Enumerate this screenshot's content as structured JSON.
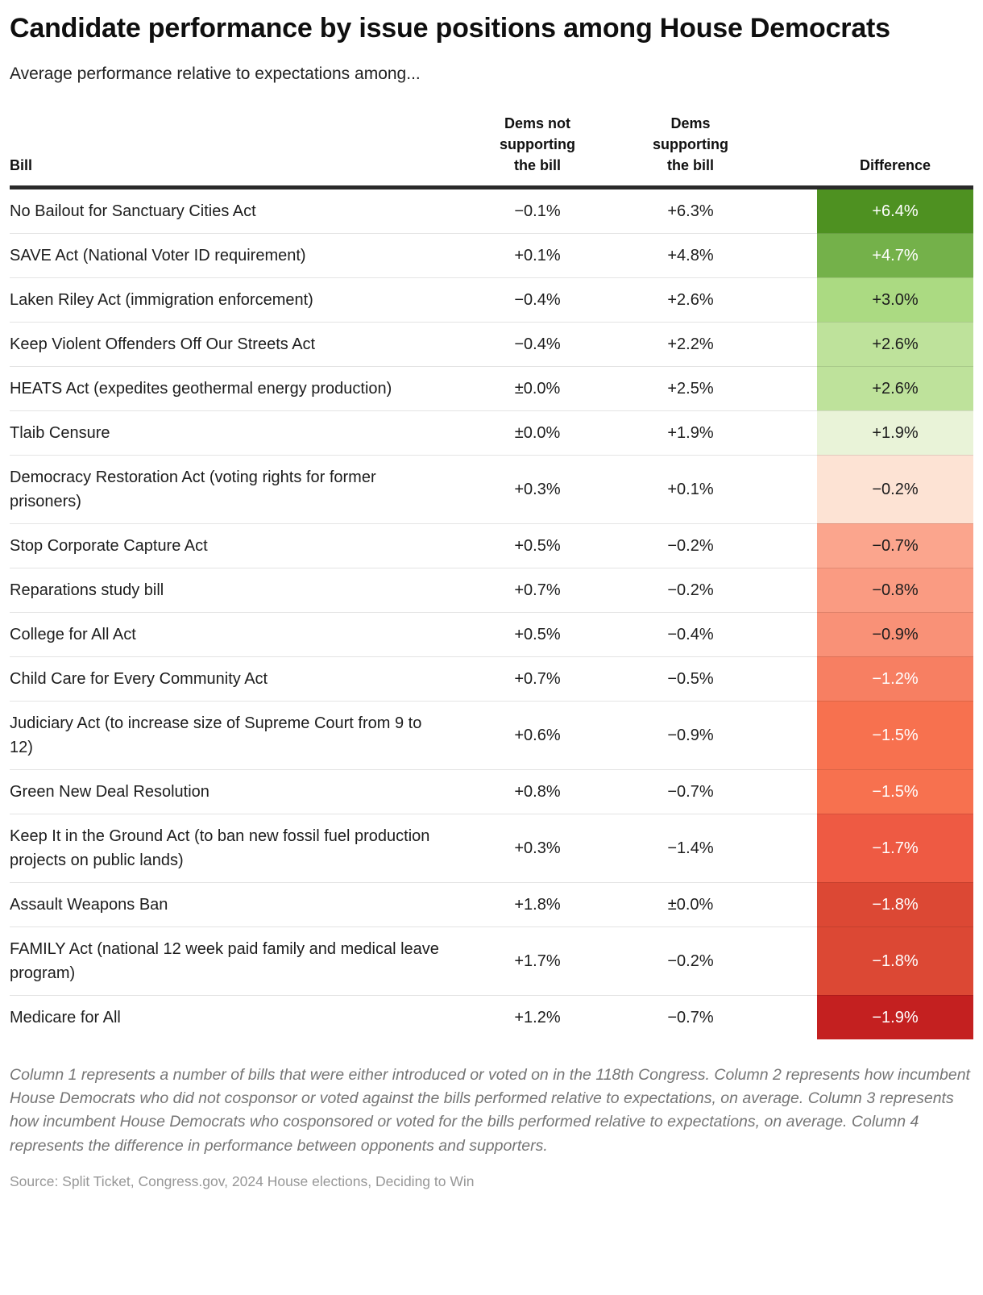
{
  "header": {
    "title": "Candidate performance by issue positions among House Democrats",
    "subtitle": "Average performance relative to expectations among..."
  },
  "table": {
    "columns": {
      "bill": "Bill",
      "not_supporting": "Dems not supporting the bill",
      "supporting": "Dems supporting the bill",
      "difference": "Difference"
    },
    "rows": [
      {
        "bill": "No Bailout for Sanctuary Cities Act",
        "not_supporting": "−0.1%",
        "supporting": "+6.3%",
        "difference": "+6.4%",
        "diff_bg": "#4e9121",
        "diff_fg": "#ffffff"
      },
      {
        "bill": "SAVE Act (National Voter ID requirement)",
        "not_supporting": "+0.1%",
        "supporting": "+4.8%",
        "difference": "+4.7%",
        "diff_bg": "#74b14a",
        "diff_fg": "#ffffff"
      },
      {
        "bill": "Laken Riley Act (immigration enforcement)",
        "not_supporting": "−0.4%",
        "supporting": "+2.6%",
        "difference": "+3.0%",
        "diff_bg": "#abda82",
        "diff_fg": "#1d1d1d"
      },
      {
        "bill": "Keep Violent Offenders Off Our Streets Act",
        "not_supporting": "−0.4%",
        "supporting": "+2.2%",
        "difference": "+2.6%",
        "diff_bg": "#bee29b",
        "diff_fg": "#1d1d1d"
      },
      {
        "bill": "HEATS Act (expedites geothermal energy production)",
        "not_supporting": "±0.0%",
        "supporting": "+2.5%",
        "difference": "+2.6%",
        "diff_bg": "#bee29b",
        "diff_fg": "#1d1d1d"
      },
      {
        "bill": "Tlaib Censure",
        "not_supporting": "±0.0%",
        "supporting": "+1.9%",
        "difference": "+1.9%",
        "diff_bg": "#e9f3d8",
        "diff_fg": "#1d1d1d"
      },
      {
        "bill": "Democracy Restoration Act (voting rights for former prisoners)",
        "not_supporting": "+0.3%",
        "supporting": "+0.1%",
        "difference": "−0.2%",
        "diff_bg": "#fde3d4",
        "diff_fg": "#1d1d1d"
      },
      {
        "bill": "Stop Corporate Capture Act",
        "not_supporting": "+0.5%",
        "supporting": "−0.2%",
        "difference": "−0.7%",
        "diff_bg": "#fba58d",
        "diff_fg": "#1d1d1d"
      },
      {
        "bill": "Reparations study bill",
        "not_supporting": "+0.7%",
        "supporting": "−0.2%",
        "difference": "−0.8%",
        "diff_bg": "#fa9b82",
        "diff_fg": "#1d1d1d"
      },
      {
        "bill": "College for All Act",
        "not_supporting": "+0.5%",
        "supporting": "−0.4%",
        "difference": "−0.9%",
        "diff_bg": "#f99177",
        "diff_fg": "#1d1d1d"
      },
      {
        "bill": "Child Care for Every Community Act",
        "not_supporting": "+0.7%",
        "supporting": "−0.5%",
        "difference": "−1.2%",
        "diff_bg": "#f77f62",
        "diff_fg": "#ffffff"
      },
      {
        "bill": "Judiciary Act (to increase size of Supreme Court from 9 to 12)",
        "not_supporting": "+0.6%",
        "supporting": "−0.9%",
        "difference": "−1.5%",
        "diff_bg": "#f7714f",
        "diff_fg": "#ffffff"
      },
      {
        "bill": "Green New Deal Resolution",
        "not_supporting": "+0.8%",
        "supporting": "−0.7%",
        "difference": "−1.5%",
        "diff_bg": "#f7714f",
        "diff_fg": "#ffffff"
      },
      {
        "bill": "Keep It in the Ground Act (to ban new fossil fuel production projects on public lands)",
        "not_supporting": "+0.3%",
        "supporting": "−1.4%",
        "difference": "−1.7%",
        "diff_bg": "#ee5a43",
        "diff_fg": "#ffffff"
      },
      {
        "bill": "Assault Weapons Ban",
        "not_supporting": "+1.8%",
        "supporting": "±0.0%",
        "difference": "−1.8%",
        "diff_bg": "#dc4834",
        "diff_fg": "#ffffff"
      },
      {
        "bill": "FAMILY Act (national 12 week paid family and medical leave program)",
        "not_supporting": "+1.7%",
        "supporting": "−0.2%",
        "difference": "−1.8%",
        "diff_bg": "#dc4834",
        "diff_fg": "#ffffff"
      },
      {
        "bill": "Medicare for All",
        "not_supporting": "+1.2%",
        "supporting": "−0.7%",
        "difference": "−1.9%",
        "diff_bg": "#c42020",
        "diff_fg": "#ffffff"
      }
    ]
  },
  "chart_data": {
    "type": "table",
    "title": "Candidate performance by issue positions among House Democrats",
    "subtitle": "Average performance relative to expectations among...",
    "columns": [
      "Bill",
      "Dems not supporting the bill (%)",
      "Dems supporting the bill (%)",
      "Difference (%)"
    ],
    "rows": [
      [
        "No Bailout for Sanctuary Cities Act",
        -0.1,
        6.3,
        6.4
      ],
      [
        "SAVE Act (National Voter ID requirement)",
        0.1,
        4.8,
        4.7
      ],
      [
        "Laken Riley Act (immigration enforcement)",
        -0.4,
        2.6,
        3.0
      ],
      [
        "Keep Violent Offenders Off Our Streets Act",
        -0.4,
        2.2,
        2.6
      ],
      [
        "HEATS Act (expedites geothermal energy production)",
        0.0,
        2.5,
        2.6
      ],
      [
        "Tlaib Censure",
        0.0,
        1.9,
        1.9
      ],
      [
        "Democracy Restoration Act (voting rights for former prisoners)",
        0.3,
        0.1,
        -0.2
      ],
      [
        "Stop Corporate Capture Act",
        0.5,
        -0.2,
        -0.7
      ],
      [
        "Reparations study bill",
        0.7,
        -0.2,
        -0.8
      ],
      [
        "College for All Act",
        0.5,
        -0.4,
        -0.9
      ],
      [
        "Child Care for Every Community Act",
        0.7,
        -0.5,
        -1.2
      ],
      [
        "Judiciary Act (to increase size of Supreme Court from 9 to 12)",
        0.6,
        -0.9,
        -1.5
      ],
      [
        "Green New Deal Resolution",
        0.8,
        -0.7,
        -1.5
      ],
      [
        "Keep It in the Ground Act (to ban new fossil fuel production projects on public lands)",
        0.3,
        -1.4,
        -1.7
      ],
      [
        "Assault Weapons Ban",
        1.8,
        0.0,
        -1.8
      ],
      [
        "FAMILY Act (national 12 week paid family and medical leave program)",
        1.7,
        -0.2,
        -1.8
      ],
      [
        "Medicare for All",
        1.2,
        -0.7,
        -1.9
      ]
    ],
    "color_encoding": "Difference column shaded green (positive) to red (negative)",
    "palette": [
      "#4e9121",
      "#74b14a",
      "#abda82",
      "#bee29b",
      "#e9f3d8",
      "#fde3d4",
      "#fba58d",
      "#fa9b82",
      "#f99177",
      "#f77f62",
      "#f7714f",
      "#ee5a43",
      "#dc4834",
      "#c42020"
    ]
  },
  "footer": {
    "note": "Column 1 represents a number of bills that were either introduced or voted on in the 118th Congress. Column 2 represents how incumbent House Democrats who did not cosponsor or voted against the bills performed relative to expectations, on average. Column 3 represents how incumbent House Democrats who cosponsored or voted for the bills performed relative to expectations, on average. Column 4 represents the difference in performance between opponents and supporters.",
    "source": "Source: Split Ticket, Congress.gov, 2024 House elections, Deciding to Win"
  },
  "colors": {
    "header_rule": "#2a2a2a",
    "row_divider": "#e4e4e4",
    "positive_max": "#4e9121",
    "negative_max": "#c42020"
  }
}
